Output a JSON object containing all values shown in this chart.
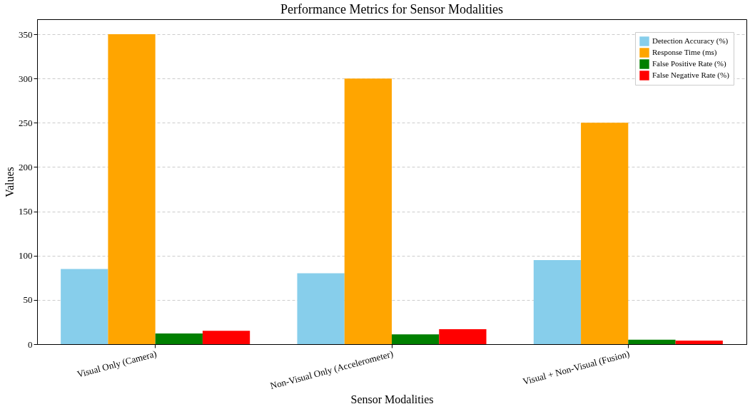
{
  "chart_data": {
    "type": "bar",
    "title": "Performance Metrics for Sensor Modalities",
    "xlabel": "Sensor Modalities",
    "ylabel": "Values",
    "categories": [
      "Visual Only (Camera)",
      "Non-Visual Only (Accelerometer)",
      "Visual + Non-Visual (Fusion)"
    ],
    "series": [
      {
        "name": "Detection Accuracy (%)",
        "color": "#87ceeb",
        "values": [
          85,
          80,
          95
        ]
      },
      {
        "name": "Response Time (ms)",
        "color": "#ffa500",
        "values": [
          350,
          300,
          250
        ]
      },
      {
        "name": "False Positive Rate (%)",
        "color": "#008000",
        "values": [
          12,
          11,
          5
        ]
      },
      {
        "name": "False Negative Rate (%)",
        "color": "#ff0000",
        "values": [
          15,
          17,
          4
        ]
      }
    ],
    "ylim": [
      0,
      367
    ],
    "yticks": [
      0,
      50,
      100,
      150,
      200,
      250,
      300,
      350
    ],
    "grid": "y",
    "legend": "top right"
  }
}
